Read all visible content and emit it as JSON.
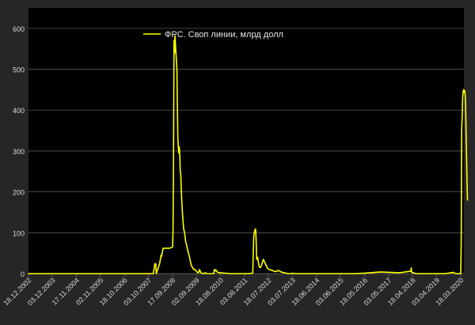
{
  "chart_data": {
    "type": "line",
    "title": "",
    "xlabel": "",
    "ylabel": "",
    "ylim": [
      0,
      650
    ],
    "grid": true,
    "legend_position": "top-center",
    "colors": {
      "background": "#262626",
      "plot_background": "#000000",
      "series": "#ffff00",
      "grid": "#5a5a5a",
      "axis_text": "#d9d9d9"
    },
    "y_ticks": [
      0,
      100,
      200,
      300,
      400,
      500,
      600
    ],
    "y_tick_labels": [
      "0",
      "100",
      "200",
      "300",
      "400",
      "500",
      "600"
    ],
    "x_tick_labels": [
      "18.12.2002",
      "03.12.2003",
      "17.11.2004",
      "02.11.2005",
      "18.10.2006",
      "03.10.2007",
      "17.09.2008",
      "02.09.2009",
      "18.08.2010",
      "03.08.2011",
      "18.07.2012",
      "03.07.2013",
      "18.06.2014",
      "03.06.2015",
      "18.05.2016",
      "03.05.2017",
      "18.04.2018",
      "03.04.2019",
      "18.03.2020"
    ],
    "series": [
      {
        "name": "ФРС. Своп линии, млрд долл",
        "x": [
          "2002-12-18",
          "2007-12-05",
          "2007-12-12",
          "2008-01-02",
          "2008-01-09",
          "2008-01-16",
          "2008-01-23",
          "2008-03-12",
          "2008-04-02",
          "2008-04-09",
          "2008-05-02",
          "2008-06-04",
          "2008-08-06",
          "2008-09-17",
          "2008-09-24",
          "2008-10-01",
          "2008-10-08",
          "2008-10-15",
          "2008-10-22",
          "2008-10-29",
          "2008-11-05",
          "2008-11-19",
          "2008-11-26",
          "2008-12-03",
          "2008-12-10",
          "2008-12-17",
          "2008-12-24",
          "2008-12-31",
          "2009-01-07",
          "2009-01-14",
          "2009-01-21",
          "2009-01-28",
          "2009-02-04",
          "2009-02-11",
          "2009-02-18",
          "2009-02-25",
          "2009-03-11",
          "2009-03-18",
          "2009-03-25",
          "2009-04-08",
          "2009-04-22",
          "2009-05-06",
          "2009-05-20",
          "2009-06-03",
          "2009-06-17",
          "2009-07-08",
          "2009-07-22",
          "2009-08-05",
          "2009-08-19",
          "2009-09-02",
          "2009-09-16",
          "2009-09-30",
          "2009-10-14",
          "2009-11-04",
          "2009-11-25",
          "2009-12-16",
          "2010-01-06",
          "2010-02-03",
          "2010-05-12",
          "2010-05-19",
          "2010-05-26",
          "2010-06-09",
          "2010-07-07",
          "2010-08-04",
          "2011-01-05",
          "2011-06-01",
          "2011-09-28",
          "2011-11-30",
          "2011-12-07",
          "2011-12-14",
          "2011-12-21",
          "2012-01-04",
          "2012-01-11",
          "2012-01-18",
          "2012-01-25",
          "2012-02-08",
          "2012-02-22",
          "2012-03-07",
          "2012-03-21",
          "2012-04-04",
          "2012-05-02",
          "2012-06-06",
          "2012-07-04",
          "2012-08-01",
          "2012-09-05",
          "2012-10-03",
          "2012-11-07",
          "2012-12-05",
          "2013-01-02",
          "2013-02-06",
          "2013-03-06",
          "2013-04-03",
          "2013-05-01",
          "2013-06-05",
          "2013-07-03",
          "2013-08-07",
          "2013-10-02",
          "2014-01-01",
          "2015-01-07",
          "2016-01-06",
          "2016-05-18",
          "2017-01-04",
          "2017-10-04",
          "2018-03-21",
          "2018-03-28",
          "2018-04-04",
          "2018-06-06",
          "2019-01-02",
          "2019-08-07",
          "2019-12-04",
          "2020-01-01",
          "2020-03-04",
          "2020-03-11",
          "2020-03-18",
          "2020-03-25",
          "2020-04-01",
          "2020-04-08",
          "2020-04-15",
          "2020-04-22",
          "2020-04-29",
          "2020-05-06",
          "2020-05-13",
          "2020-05-20",
          "2020-05-27",
          "2020-06-03",
          "2020-06-10",
          "2020-06-17",
          "2020-06-24"
        ],
        "values": [
          0,
          0,
          0,
          24,
          24,
          24,
          0,
          24,
          45,
          42,
          62,
          62,
          62,
          65,
          110,
          290,
          570,
          540,
          582,
          560,
          540,
          500,
          410,
          330,
          310,
          295,
          310,
          290,
          250,
          245,
          210,
          180,
          160,
          140,
          125,
          110,
          100,
          90,
          80,
          70,
          60,
          50,
          42,
          30,
          20,
          14,
          10,
          10,
          8,
          5,
          3,
          2,
          10,
          2,
          0,
          0,
          2,
          0,
          0,
          10,
          6,
          9,
          3,
          2,
          0,
          0,
          0,
          1,
          52,
          90,
          99,
          109,
          108,
          80,
          35,
          40,
          25,
          15,
          15,
          20,
          35,
          22,
          12,
          10,
          8,
          6,
          5,
          8,
          5,
          3,
          2,
          1,
          0,
          0,
          1,
          0,
          0,
          0,
          0,
          0,
          1,
          4,
          2,
          6,
          14,
          3,
          0,
          0,
          0,
          3,
          0,
          0,
          0,
          0,
          80,
          355,
          385,
          430,
          445,
          450,
          444,
          448,
          440,
          420,
          350,
          290,
          230,
          180
        ]
      }
    ]
  }
}
